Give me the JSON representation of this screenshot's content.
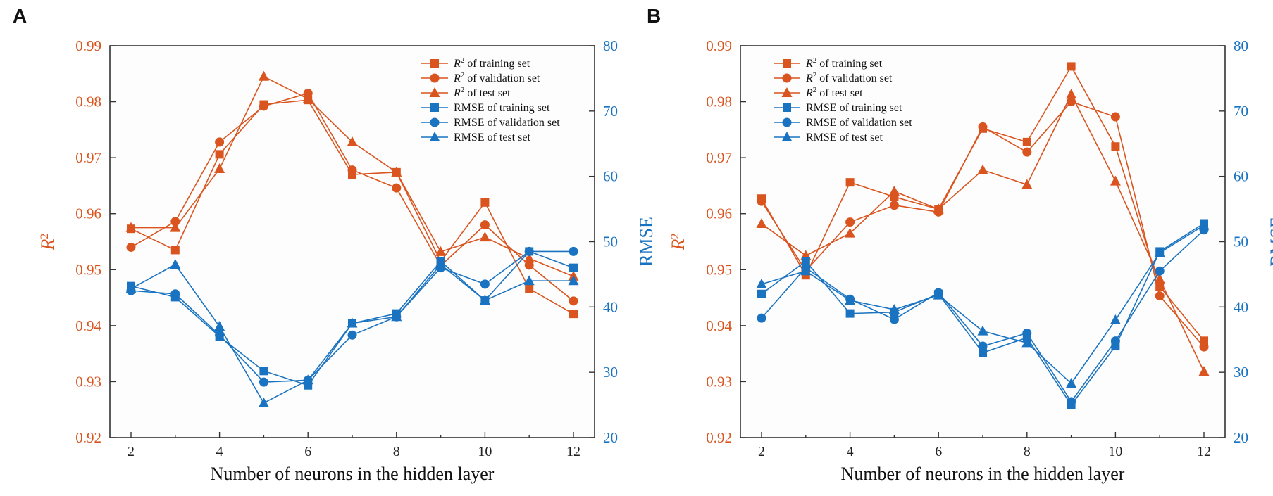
{
  "colors": {
    "r2": "#d9541e",
    "rmse": "#1a73c0"
  },
  "chart_data": [
    {
      "panel": "A",
      "type": "line",
      "xlabel": "Number of neurons in the hidden layer",
      "ylabel_left": "R",
      "ylabel_left_sup": "2",
      "ylabel_right": "RMSE",
      "x": [
        2,
        3,
        4,
        5,
        6,
        7,
        8,
        9,
        10,
        11,
        12
      ],
      "xticks": [
        2,
        4,
        6,
        8,
        10,
        12
      ],
      "ylim_left": [
        0.92,
        0.99
      ],
      "yticks_left": [
        "0.92",
        "0.93",
        "0.94",
        "0.95",
        "0.96",
        "0.97",
        "0.98",
        "0.99"
      ],
      "ylim_right": [
        20,
        80
      ],
      "yticks_right": [
        "20",
        "30",
        "40",
        "50",
        "60",
        "70",
        "80"
      ],
      "series": [
        {
          "name": "R2 of training set",
          "prefix": "R",
          "sup": "2",
          "suffix": " of training set",
          "axis": "left",
          "marker": "square",
          "values": [
            0.9573,
            0.9535,
            0.9706,
            0.9795,
            0.9803,
            0.967,
            0.9674,
            0.9515,
            0.962,
            0.9466,
            0.9421
          ]
        },
        {
          "name": "R2 of validation set",
          "prefix": "R",
          "sup": "2",
          "suffix": " of validation set",
          "axis": "left",
          "marker": "circle",
          "values": [
            0.954,
            0.9586,
            0.9728,
            0.9792,
            0.9815,
            0.9678,
            0.9646,
            0.9507,
            0.958,
            0.9508,
            0.9444
          ]
        },
        {
          "name": "R2 of test set",
          "prefix": "R",
          "sup": "2",
          "suffix": " of test set",
          "axis": "left",
          "marker": "triangle",
          "values": [
            0.9575,
            0.9575,
            0.968,
            0.9845,
            0.9805,
            0.9728,
            0.9674,
            0.9532,
            0.9558,
            0.952,
            0.9488
          ]
        },
        {
          "name": "RMSE of training set",
          "prefix": "RMSE of training set",
          "sup": "",
          "suffix": "",
          "axis": "right",
          "marker": "square",
          "values": [
            43.2,
            41.5,
            35.5,
            30.2,
            28.0,
            37.5,
            39.0,
            47.0,
            41.0,
            48.5,
            46.0
          ]
        },
        {
          "name": "RMSE of validation set",
          "prefix": "RMSE of validation set",
          "sup": "",
          "suffix": "",
          "axis": "right",
          "marker": "circle",
          "values": [
            42.5,
            42.0,
            35.7,
            28.5,
            28.8,
            35.7,
            38.5,
            46.0,
            43.5,
            48.5,
            48.5
          ]
        },
        {
          "name": "RMSE of test set",
          "prefix": "RMSE of test set",
          "sup": "",
          "suffix": "",
          "axis": "right",
          "marker": "triangle",
          "values": [
            42.8,
            46.5,
            37.0,
            25.3,
            28.8,
            37.5,
            38.5,
            46.5,
            41.0,
            44.0,
            44.0
          ]
        }
      ]
    },
    {
      "panel": "B",
      "type": "line",
      "xlabel": "Number of neurons in the hidden layer",
      "ylabel_left": "R",
      "ylabel_left_sup": "2",
      "ylabel_right": "RMSE",
      "x": [
        2,
        3,
        4,
        5,
        6,
        7,
        8,
        9,
        10,
        11,
        12
      ],
      "xticks": [
        2,
        4,
        6,
        8,
        10,
        12
      ],
      "ylim_left": [
        0.92,
        0.99
      ],
      "yticks_left": [
        "0.92",
        "0.93",
        "0.94",
        "0.95",
        "0.96",
        "0.97",
        "0.98",
        "0.99"
      ],
      "ylim_right": [
        20,
        80
      ],
      "yticks_right": [
        "20",
        "30",
        "40",
        "50",
        "60",
        "70",
        "80"
      ],
      "series": [
        {
          "name": "R2 of training set",
          "prefix": "R",
          "sup": "2",
          "suffix": " of training set",
          "axis": "left",
          "marker": "square",
          "values": [
            0.9627,
            0.949,
            0.9656,
            0.963,
            0.9608,
            0.9752,
            0.9728,
            0.9863,
            0.972,
            0.947,
            0.9373
          ]
        },
        {
          "name": "R2 of validation set",
          "prefix": "R",
          "sup": "2",
          "suffix": " of validation set",
          "axis": "left",
          "marker": "circle",
          "values": [
            0.9622,
            0.9498,
            0.9585,
            0.9615,
            0.9603,
            0.9755,
            0.971,
            0.98,
            0.9773,
            0.9453,
            0.9362
          ]
        },
        {
          "name": "R2 of test set",
          "prefix": "R",
          "sup": "2",
          "suffix": " of test set",
          "axis": "left",
          "marker": "triangle",
          "values": [
            0.9582,
            0.9525,
            0.9565,
            0.964,
            0.9608,
            0.9678,
            0.9652,
            0.9813,
            0.9658,
            0.9483,
            0.9318
          ]
        },
        {
          "name": "RMSE of training set",
          "prefix": "RMSE of training set",
          "sup": "",
          "suffix": "",
          "axis": "right",
          "marker": "square",
          "values": [
            42.0,
            47.0,
            39.0,
            39.2,
            42.0,
            33.0,
            35.3,
            25.0,
            34.0,
            48.5,
            52.8
          ]
        },
        {
          "name": "RMSE of validation set",
          "prefix": "RMSE of validation set",
          "sup": "",
          "suffix": "",
          "axis": "right",
          "marker": "circle",
          "values": [
            38.3,
            46.0,
            41.2,
            38.1,
            42.2,
            34.0,
            36.0,
            25.5,
            34.8,
            45.5,
            51.8
          ]
        },
        {
          "name": "RMSE of test set",
          "prefix": "RMSE of test set",
          "sup": "",
          "suffix": "",
          "axis": "right",
          "marker": "triangle",
          "values": [
            43.5,
            45.5,
            41.0,
            39.6,
            41.8,
            36.3,
            34.5,
            28.3,
            38.0,
            48.3,
            52.5
          ]
        }
      ]
    }
  ]
}
